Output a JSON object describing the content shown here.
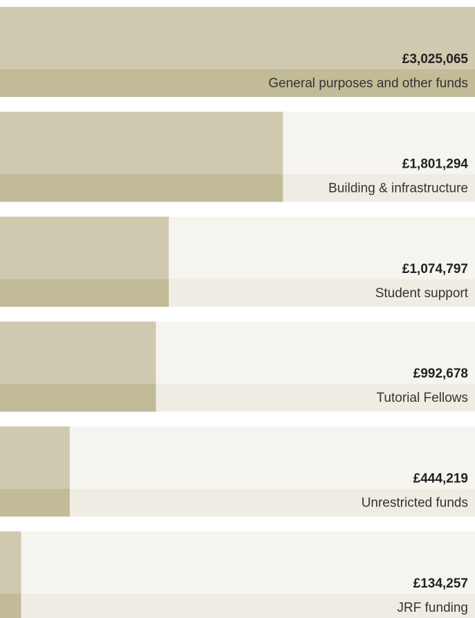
{
  "chart_data": {
    "type": "bar",
    "categories": [
      "General purposes and other funds",
      "Building & infrastructure",
      "Student support",
      "Tutorial Fellows",
      "Unrestricted funds",
      "JRF funding"
    ],
    "values": [
      3025065,
      1801294,
      1074797,
      992678,
      444219,
      134257
    ],
    "value_labels": [
      "£3,025,065",
      "£1,801,294",
      "£1,074,797",
      "£992,678",
      "£444,219",
      "£134,257"
    ],
    "color": "#cfc9b0"
  }
}
